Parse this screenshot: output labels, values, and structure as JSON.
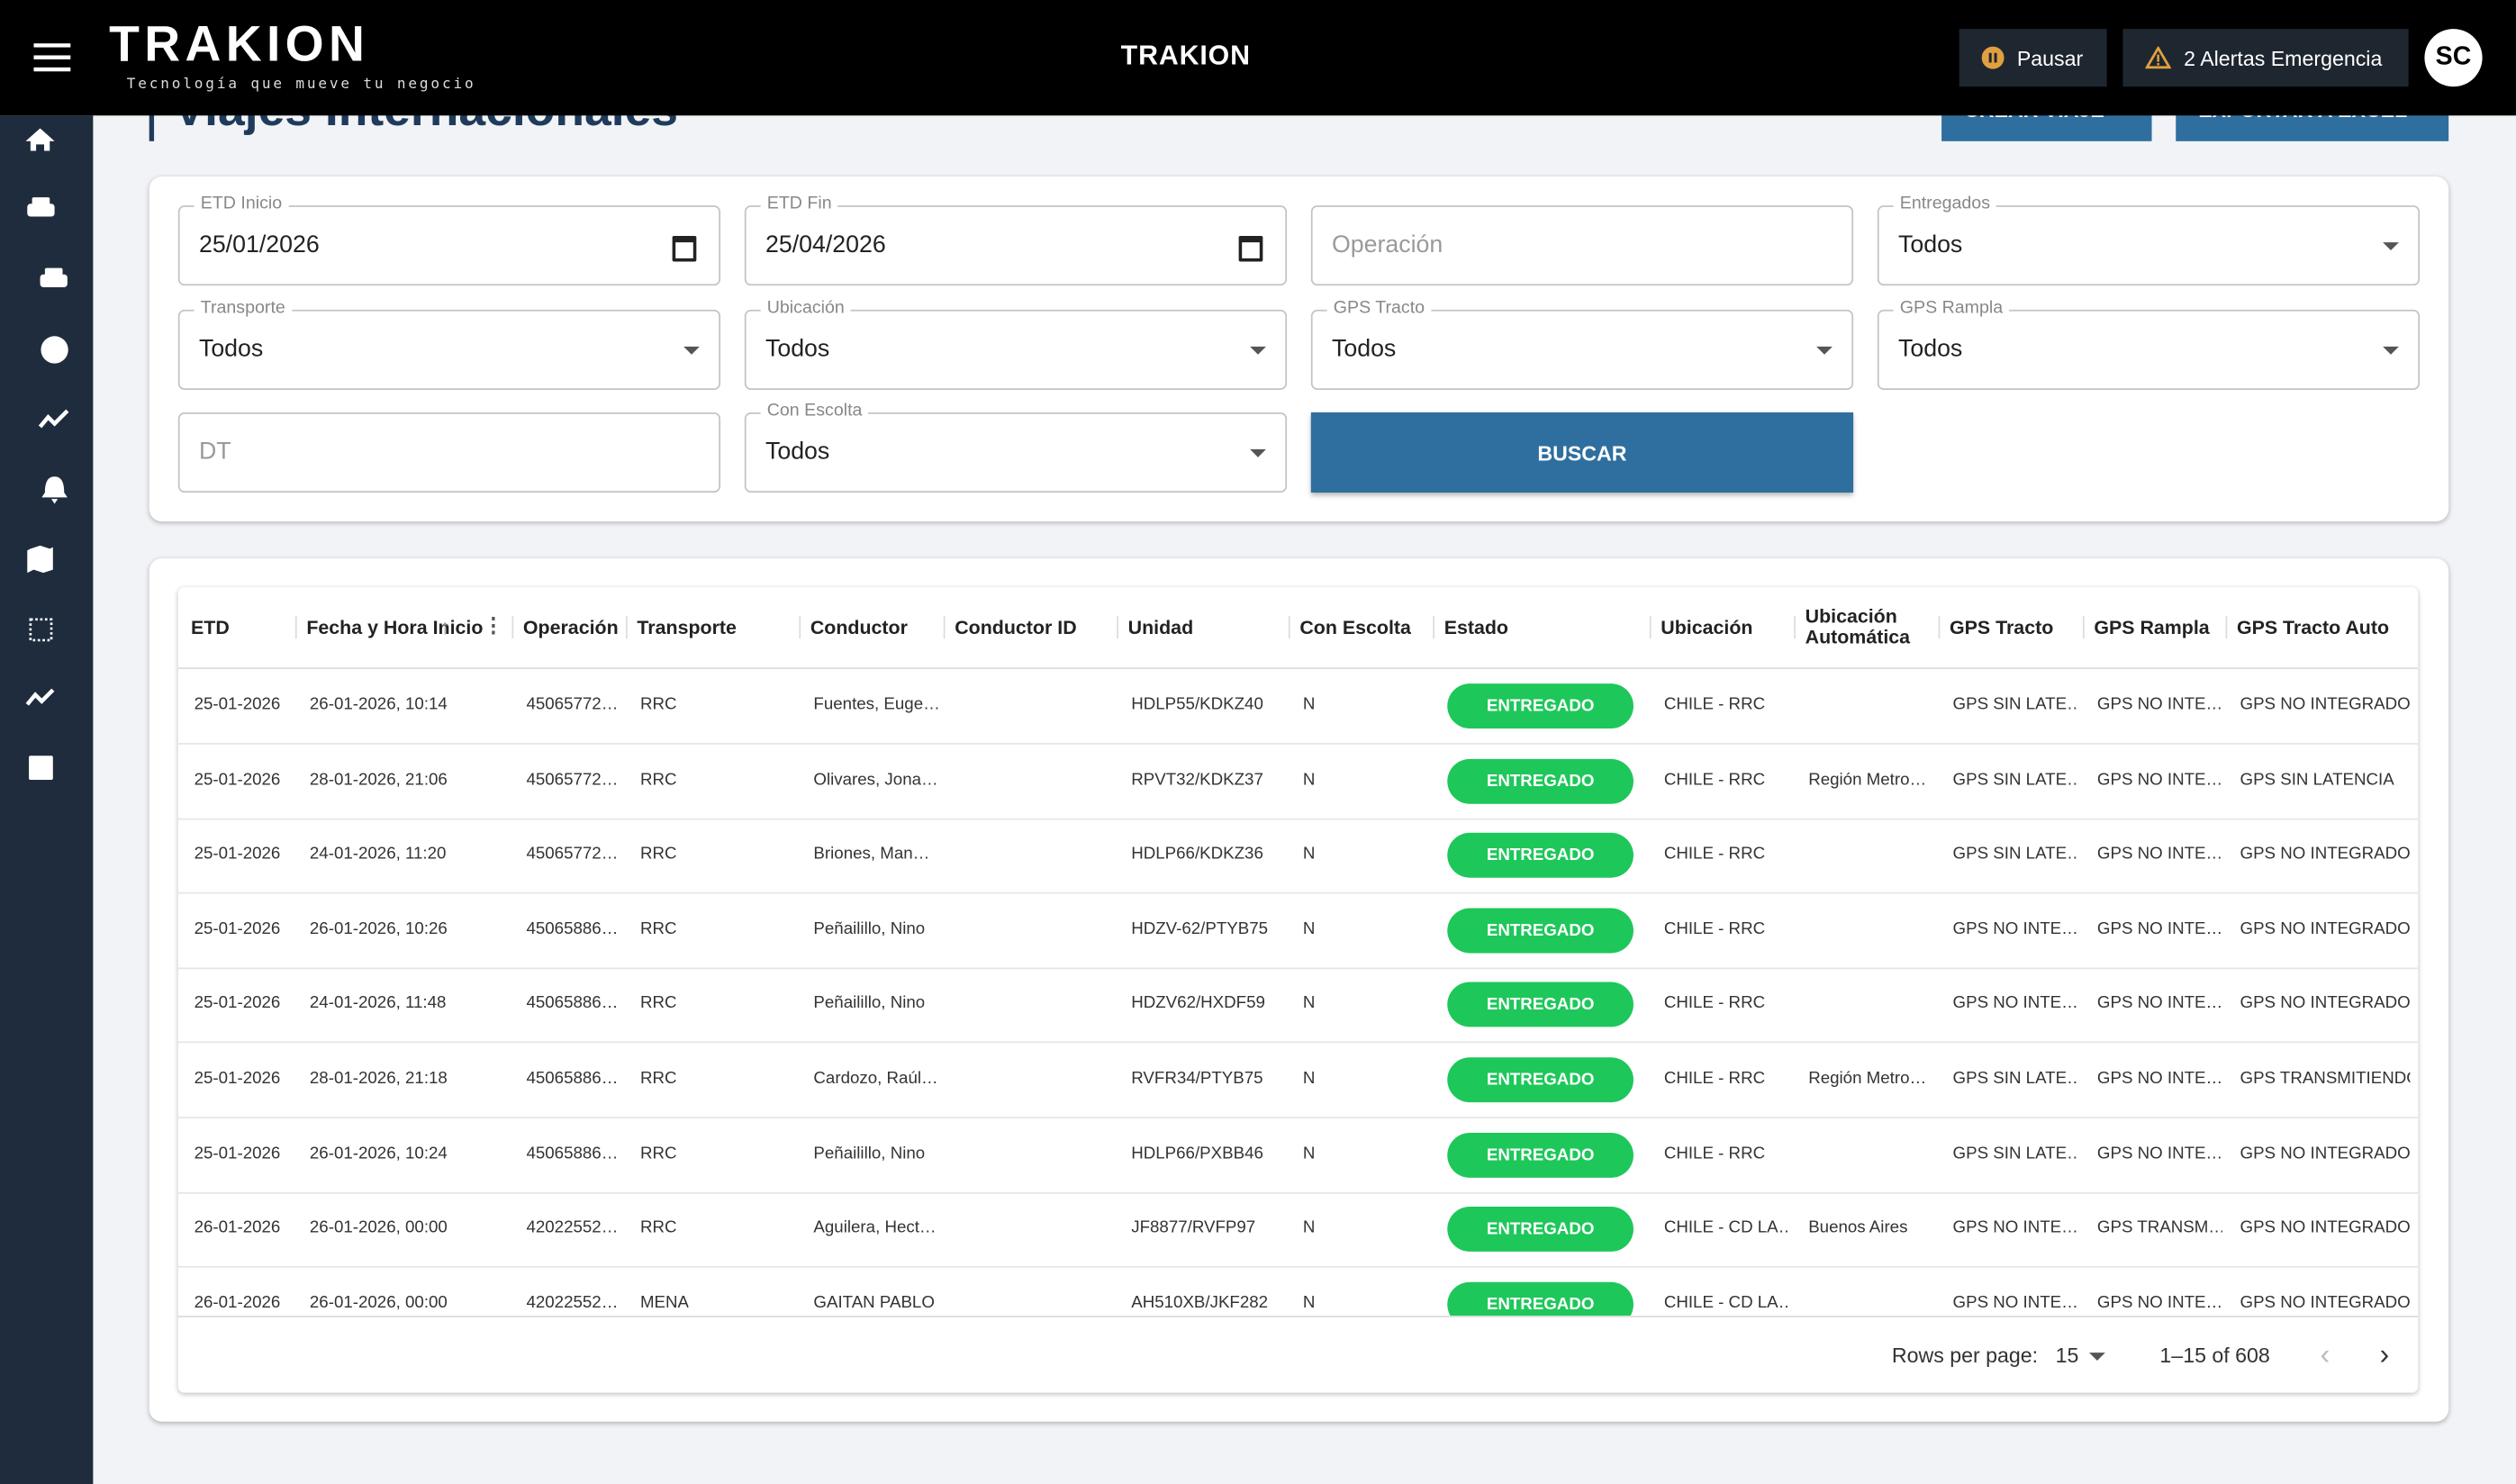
{
  "header": {
    "logo": "TRAKION",
    "tagline": "Tecnología que mueve tu negocio",
    "title": "TRAKION",
    "pause_button": "Pausar",
    "alerts_button": "2 Alertas Emergencia",
    "avatar": "SC"
  },
  "page": {
    "title": "Viajes Internacionales",
    "create_button": "CREAR VIAJE",
    "export_button": "EXPORTAR A EXCEL"
  },
  "filters": [
    {
      "label": "ETD Inicio",
      "value": "25/01/2026",
      "kind": "date"
    },
    {
      "label": "ETD Fin",
      "value": "25/04/2026",
      "kind": "date"
    },
    {
      "placeholder": "Operación",
      "kind": "text"
    },
    {
      "label": "Entregados",
      "value": "Todos",
      "kind": "select"
    },
    {
      "label": "Transporte",
      "value": "Todos",
      "kind": "select"
    },
    {
      "label": "Ubicación",
      "value": "Todos",
      "kind": "select"
    },
    {
      "label": "GPS Tracto",
      "value": "Todos",
      "kind": "select"
    },
    {
      "label": "GPS Rampla",
      "value": "Todos",
      "kind": "select"
    },
    {
      "placeholder": "DT",
      "kind": "text"
    },
    {
      "label": "Con Escolta",
      "value": "Todos",
      "kind": "select"
    }
  ],
  "search_button": "BUSCAR",
  "table": {
    "columns": [
      "ETD",
      "Fecha y Hora Inicio",
      "Operación",
      "Transporte",
      "Conductor",
      "Conductor ID",
      "Unidad",
      "Con Escolta",
      "Estado",
      "Ubicación",
      "Ubicación Automática",
      "GPS Tracto",
      "GPS Rampla",
      "GPS Tracto Auto"
    ],
    "rows": [
      [
        "25-01-2026",
        "26-01-2026, 10:14",
        "45065772…",
        "RRC",
        "Fuentes, Euge…",
        null,
        "HDLP55/KDKZ40",
        "N",
        "ENTREGADO",
        "CHILE - RRC",
        null,
        "GPS SIN LATE…",
        "GPS NO INTE…",
        "GPS NO INTEGRADO"
      ],
      [
        "25-01-2026",
        "28-01-2026, 21:06",
        "45065772…",
        "RRC",
        "Olivares, Jona…",
        null,
        "RPVT32/KDKZ37",
        "N",
        "ENTREGADO",
        "CHILE - RRC",
        "Región Metro…",
        "GPS SIN LATE…",
        "GPS NO INTE…",
        "GPS SIN LATENCIA"
      ],
      [
        "25-01-2026",
        "24-01-2026, 11:20",
        "45065772…",
        "RRC",
        "Briones, Man…",
        null,
        "HDLP66/KDKZ36",
        "N",
        "ENTREGADO",
        "CHILE - RRC",
        null,
        "GPS SIN LATE…",
        "GPS NO INTE…",
        "GPS NO INTEGRADO"
      ],
      [
        "25-01-2026",
        "26-01-2026, 10:26",
        "45065886…",
        "RRC",
        "Peñailillo, Nino",
        null,
        "HDZV-62/PTYB75",
        "N",
        "ENTREGADO",
        "CHILE - RRC",
        null,
        "GPS NO INTE…",
        "GPS NO INTE…",
        "GPS NO INTEGRADO"
      ],
      [
        "25-01-2026",
        "24-01-2026, 11:48",
        "45065886…",
        "RRC",
        "Peñailillo, Nino",
        null,
        "HDZV62/HXDF59",
        "N",
        "ENTREGADO",
        "CHILE - RRC",
        null,
        "GPS NO INTE…",
        "GPS NO INTE…",
        "GPS NO INTEGRADO"
      ],
      [
        "25-01-2026",
        "28-01-2026, 21:18",
        "45065886…",
        "RRC",
        "Cardozo, Raúl…",
        null,
        "RVFR34/PTYB75",
        "N",
        "ENTREGADO",
        "CHILE - RRC",
        "Región Metro…",
        "GPS SIN LATE…",
        "GPS NO INTE…",
        "GPS TRANSMITIENDO"
      ],
      [
        "25-01-2026",
        "26-01-2026, 10:24",
        "45065886…",
        "RRC",
        "Peñailillo, Nino",
        null,
        "HDLP66/PXBB46",
        "N",
        "ENTREGADO",
        "CHILE - RRC",
        null,
        "GPS SIN LATE…",
        "GPS NO INTE…",
        "GPS NO INTEGRADO"
      ],
      [
        "26-01-2026",
        "26-01-2026, 00:00",
        "42022552…",
        "RRC",
        "Aguilera, Hect…",
        null,
        "JF8877/RVFP97",
        "N",
        "ENTREGADO",
        "CHILE - CD LA…",
        "Buenos Aires",
        "GPS NO INTE…",
        "GPS TRANSM…",
        "GPS NO INTEGRADO"
      ],
      [
        "26-01-2026",
        "26-01-2026, 00:00",
        "42022552…",
        "MENA",
        "GAITAN PABLO",
        null,
        "AH510XB/JKF282",
        "N",
        "ENTREGADO",
        "CHILE - CD LA…",
        null,
        "GPS NO INTE…",
        "GPS NO INTE…",
        "GPS NO INTEGRADO"
      ]
    ]
  },
  "pagination": {
    "rows_per_page_label": "Rows per page:",
    "rows_per_page": "15",
    "range": "1–15 of 608"
  }
}
